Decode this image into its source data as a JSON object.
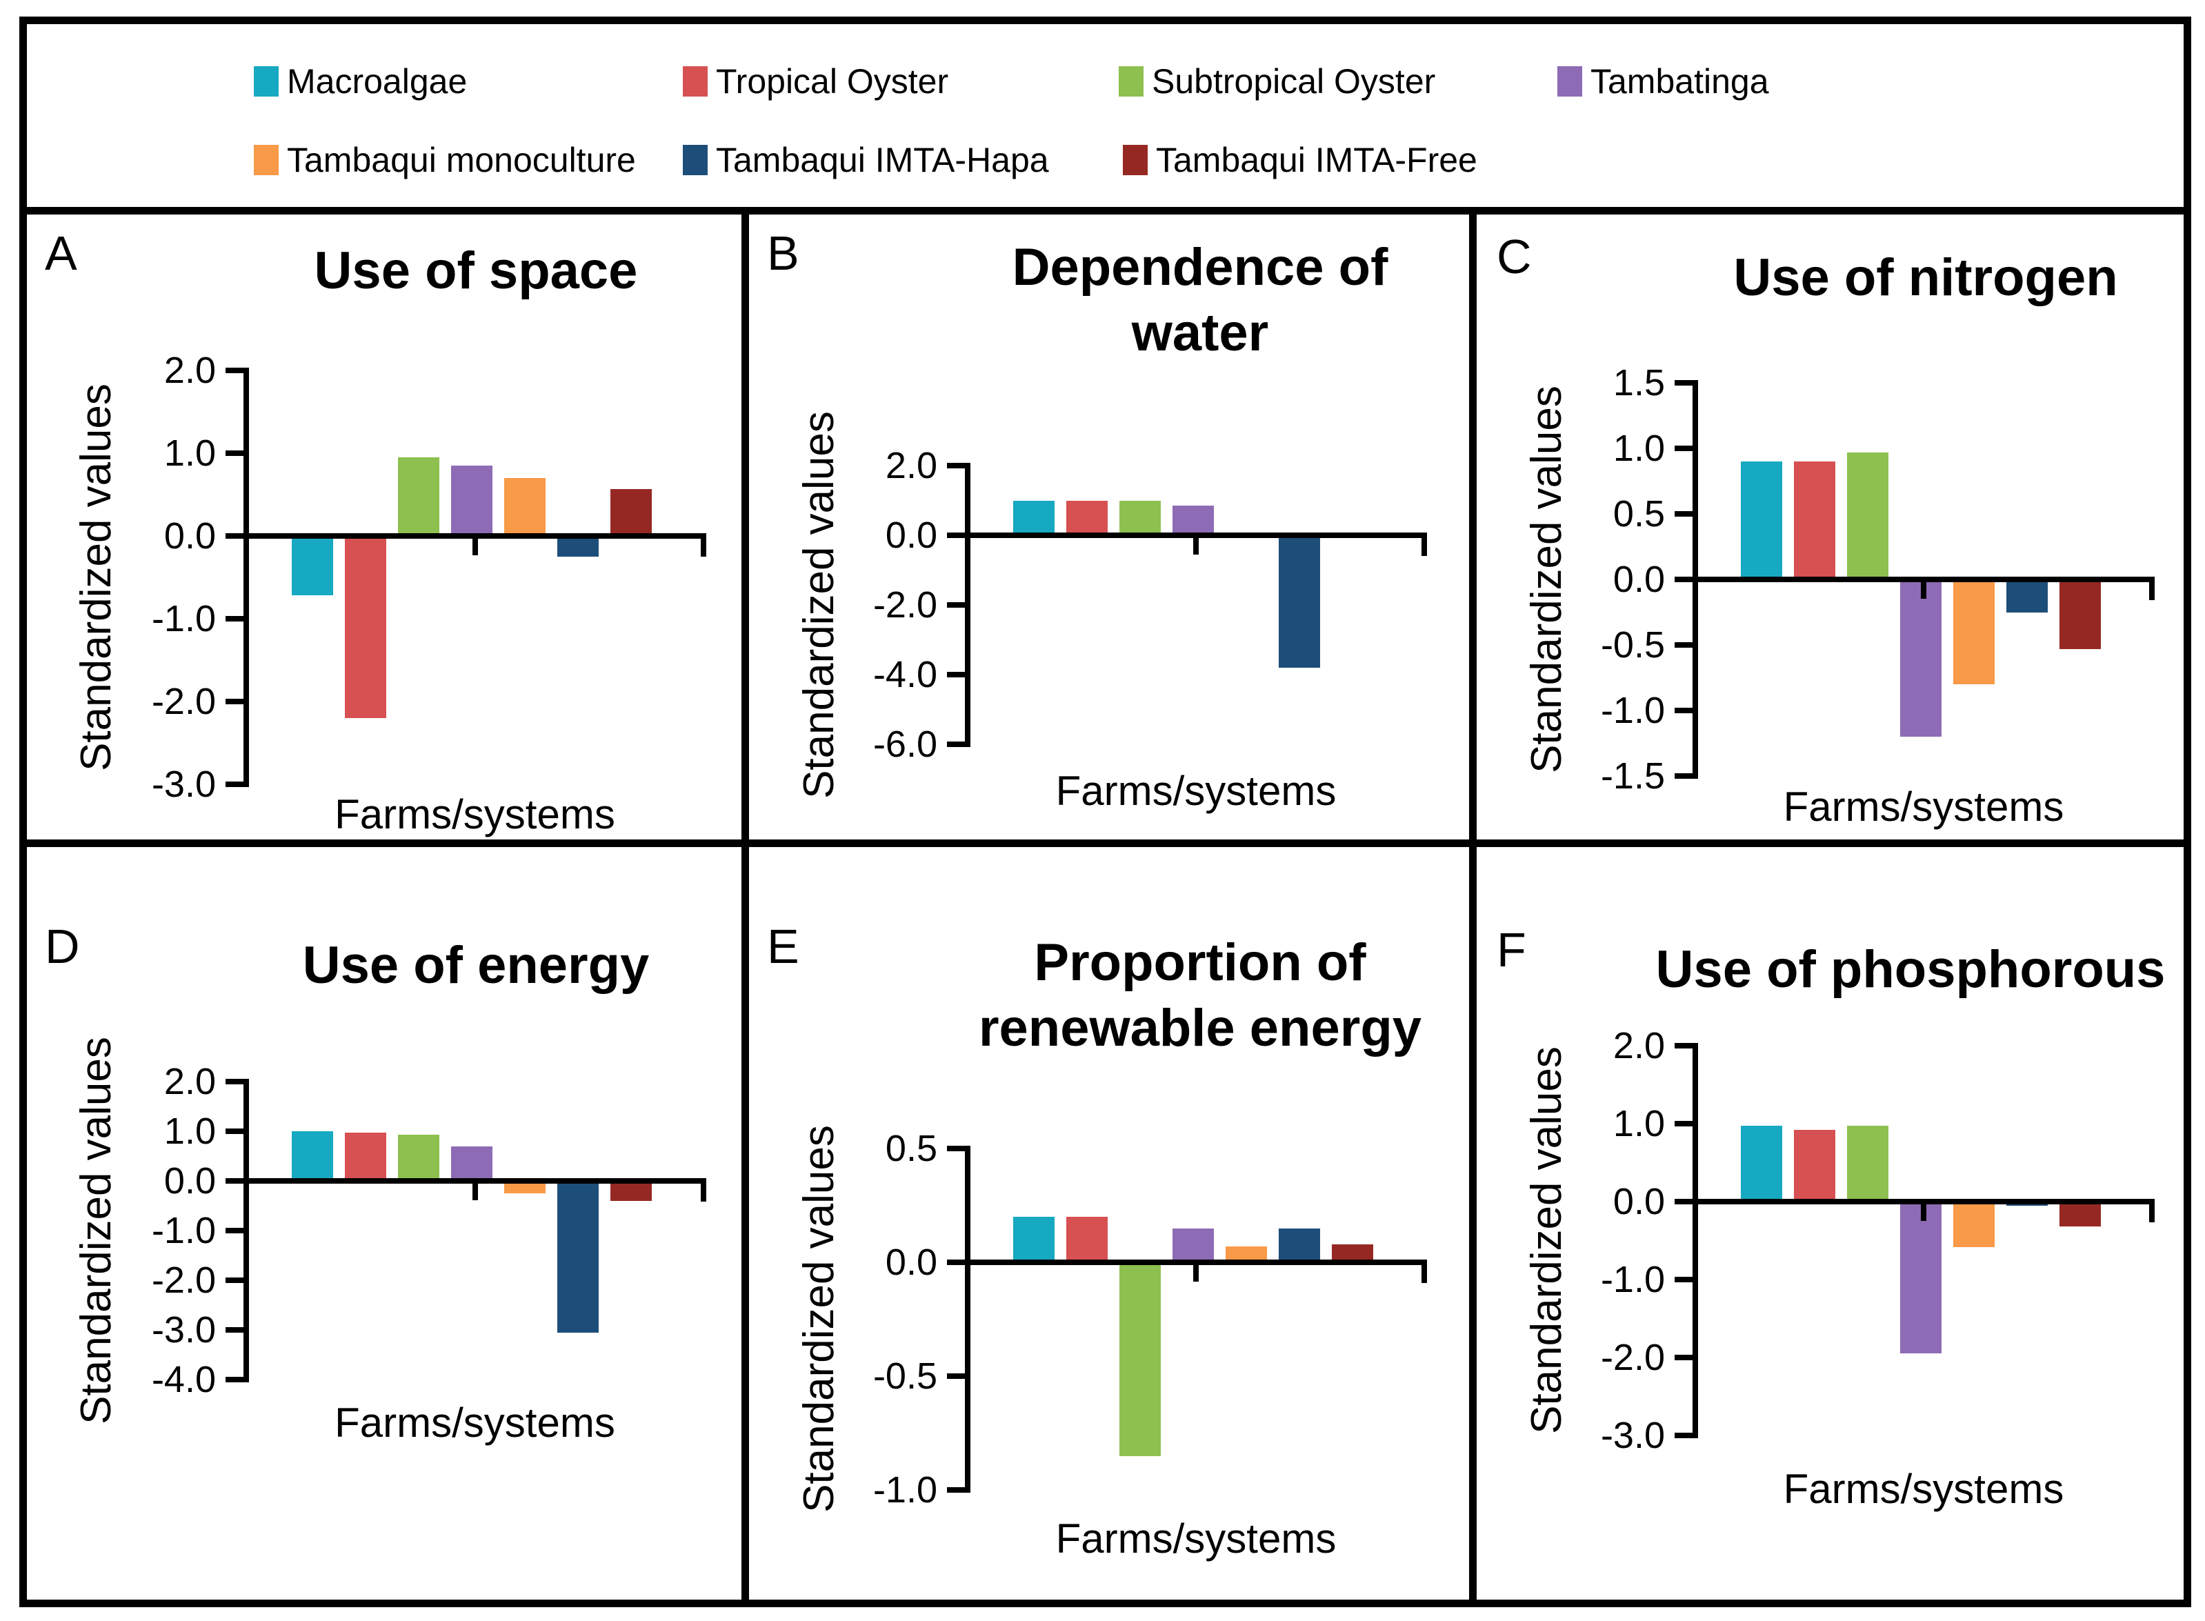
{
  "figure_type": "six-panel bar chart figure",
  "legend": {
    "items": [
      {
        "label": "Macroalgae",
        "color": "#17a9c2"
      },
      {
        "label": "Tropical Oyster",
        "color": "#d75052"
      },
      {
        "label": "Subtropical Oyster",
        "color": "#8dc04e"
      },
      {
        "label": "Tambatinga",
        "color": "#8e6bb5"
      },
      {
        "label": "Tambaqui monoculture",
        "color": "#f89a47"
      },
      {
        "label": "Tambaqui IMTA-Hapa",
        "color": "#1d4e79"
      },
      {
        "label": "Tambaqui IMTA-Free",
        "color": "#962823"
      }
    ]
  },
  "chart_data": [
    {
      "panel": "A",
      "type": "bar",
      "title": "Use of space",
      "title_lines": [
        "Use of space"
      ],
      "xlabel": "Farms/systems",
      "ylabel": "Standardized values",
      "categories": [
        "Macroalgae",
        "Tropical Oyster",
        "Subtropical Oyster",
        "Tambatinga",
        "Tambaqui monoculture",
        "Tambaqui IMTA-Hapa",
        "Tambaqui IMTA-Free"
      ],
      "values": [
        -0.72,
        -2.2,
        0.95,
        0.85,
        0.7,
        -0.25,
        0.57
      ],
      "ylim": [
        -3.0,
        2.0
      ],
      "yticks": [
        2.0,
        1.0,
        0.0,
        -1.0,
        -2.0,
        -3.0
      ],
      "grid": false,
      "legend_position": "shared-top"
    },
    {
      "panel": "B",
      "type": "bar",
      "title": "Dependence of water",
      "title_lines": [
        "Dependence of",
        "water"
      ],
      "xlabel": "Farms/systems",
      "ylabel": "Standardized values",
      "categories": [
        "Macroalgae",
        "Tropical Oyster",
        "Subtropical Oyster",
        "Tambatinga",
        "Tambaqui monoculture",
        "Tambaqui IMTA-Hapa",
        "Tambaqui IMTA-Free"
      ],
      "values": [
        1.0,
        1.0,
        1.0,
        0.85,
        -0.07,
        -3.8,
        0.0
      ],
      "ylim": [
        -6.0,
        2.0
      ],
      "yticks": [
        2.0,
        0.0,
        -2.0,
        -4.0,
        -6.0
      ],
      "grid": false,
      "legend_position": "shared-top"
    },
    {
      "panel": "C",
      "type": "bar",
      "title": "Use of nitrogen",
      "title_lines": [
        "Use of nitrogen"
      ],
      "xlabel": "Farms/systems",
      "ylabel": "Standardized values",
      "categories": [
        "Macroalgae",
        "Tropical Oyster",
        "Subtropical Oyster",
        "Tambatinga",
        "Tambaqui monoculture",
        "Tambaqui IMTA-Hapa",
        "Tambaqui IMTA-Free"
      ],
      "values": [
        0.9,
        0.9,
        0.97,
        -1.2,
        -0.8,
        -0.25,
        -0.53
      ],
      "ylim": [
        -1.5,
        1.5
      ],
      "yticks": [
        1.5,
        1.0,
        0.5,
        0.0,
        -0.5,
        -1.0,
        -1.5
      ],
      "grid": false,
      "legend_position": "shared-top"
    },
    {
      "panel": "D",
      "type": "bar",
      "title": "Use of energy",
      "title_lines": [
        "Use of energy"
      ],
      "xlabel": "Farms/systems",
      "ylabel": "Standardized values",
      "categories": [
        "Macroalgae",
        "Tropical Oyster",
        "Subtropical Oyster",
        "Tambatinga",
        "Tambaqui monoculture",
        "Tambaqui IMTA-Hapa",
        "Tambaqui IMTA-Free"
      ],
      "values": [
        1.0,
        0.97,
        0.93,
        0.7,
        -0.25,
        -3.05,
        -0.4
      ],
      "ylim": [
        -4.0,
        2.0
      ],
      "yticks": [
        2.0,
        1.0,
        0.0,
        -1.0,
        -2.0,
        -3.0,
        -4.0
      ],
      "grid": false,
      "legend_position": "shared-top"
    },
    {
      "panel": "E",
      "type": "bar",
      "title": "Proportion of renewable energy",
      "title_lines": [
        "Proportion of",
        "renewable energy"
      ],
      "xlabel": "Farms/systems",
      "ylabel": "Standardized values",
      "categories": [
        "Macroalgae",
        "Tropical Oyster",
        "Subtropical Oyster",
        "Tambatinga",
        "Tambaqui monoculture",
        "Tambaqui IMTA-Hapa",
        "Tambaqui IMTA-Free"
      ],
      "values": [
        0.2,
        0.2,
        -0.85,
        0.15,
        0.07,
        0.15,
        0.08
      ],
      "ylim": [
        -1.0,
        0.5
      ],
      "yticks": [
        0.5,
        0.0,
        -0.5,
        -1.0
      ],
      "grid": false,
      "legend_position": "shared-top"
    },
    {
      "panel": "F",
      "type": "bar",
      "title": "Use of phosphorous",
      "title_lines": [
        "Use of phosphorous"
      ],
      "xlabel": "Farms/systems",
      "ylabel": "Standardized values",
      "categories": [
        "Macroalgae",
        "Tropical Oyster",
        "Subtropical Oyster",
        "Tambatinga",
        "Tambaqui monoculture",
        "Tambaqui IMTA-Hapa",
        "Tambaqui IMTA-Free"
      ],
      "values": [
        0.97,
        0.92,
        0.97,
        -1.95,
        -0.58,
        -0.05,
        -0.32
      ],
      "ylim": [
        -3.0,
        2.0
      ],
      "yticks": [
        2.0,
        1.0,
        0.0,
        -1.0,
        -2.0,
        -3.0
      ],
      "grid": false,
      "legend_position": "shared-top"
    }
  ]
}
